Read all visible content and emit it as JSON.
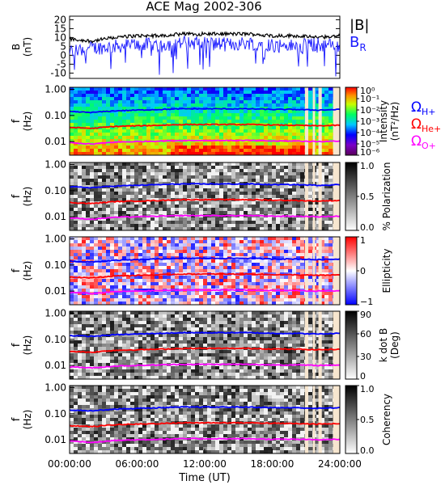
{
  "title": "ACE Mag 2002-306",
  "colors": {
    "B_total": "#000000",
    "B_R": "#1a1aff",
    "H_plus": "#0000ff",
    "He_plus": "#ff0000",
    "O_plus": "#ff00ff",
    "no_data_fill": "#f7e6cf"
  },
  "x_axis": {
    "label": "Time (UT)",
    "range_hours": [
      0,
      24
    ],
    "ticks": [
      "00:00:00",
      "06:00:00",
      "12:00:00",
      "18:00:00",
      "24:00:00"
    ],
    "tick_hours": [
      0,
      6,
      12,
      18,
      24
    ]
  },
  "legend": {
    "B_total": "|B|",
    "B_R_main": "B",
    "B_R_sub": "R",
    "omega": "Ω",
    "H_plus_sub": "H+",
    "He_plus_sub": "He+",
    "O_plus_sub": "O+"
  },
  "freq_ticks": [
    "1.00",
    "0.10",
    "0.01"
  ],
  "freq_tick_values": [
    1.0,
    0.1,
    0.01
  ],
  "chart_data": [
    {
      "id": "b_timeseries",
      "type": "line",
      "ylabel": "B",
      "yunit": "(nT)",
      "ylim": [
        -13,
        22
      ],
      "yticks": [
        "20",
        "15",
        "10",
        "5",
        "0",
        "-5",
        "-10"
      ],
      "ytick_values": [
        20,
        15,
        10,
        5,
        0,
        -5,
        -10
      ],
      "series": [
        {
          "name": "|B|",
          "x_hours": [
            0,
            2,
            4,
            6,
            8,
            10,
            12,
            14,
            16,
            18,
            20,
            22,
            24
          ],
          "values": [
            9,
            8,
            10,
            11,
            11,
            12,
            12,
            12,
            12,
            11,
            11,
            10,
            11
          ]
        },
        {
          "name": "B_R",
          "x_hours": [
            0,
            2,
            4,
            6,
            8,
            10,
            12,
            14,
            16,
            18,
            20,
            22,
            24
          ],
          "values": [
            2,
            4,
            5,
            6,
            6,
            7,
            7,
            6,
            7,
            6,
            5,
            6,
            5
          ]
        }
      ]
    },
    {
      "id": "intensity",
      "type": "heatmap",
      "ylabel": "f",
      "yunit": "(Hz)",
      "colorbar_label": "Intensity",
      "colorbar_unit": "(nT²/Hz)",
      "colorbar_ticks": [
        "10⁰",
        "10⁻¹",
        "10⁻²",
        "10⁻³",
        "10⁻⁴",
        "10⁻⁵",
        "10⁻⁶"
      ],
      "colorbar_scale": "log",
      "colorbar_range": [
        1e-06,
        1
      ]
    },
    {
      "id": "polarization",
      "type": "heatmap",
      "ylabel": "f",
      "yunit": "(Hz)",
      "colorbar_label": "% Polarization",
      "colorbar_ticks": [
        "1.0",
        "0.5",
        "0.0"
      ],
      "colorbar_range": [
        0,
        1
      ]
    },
    {
      "id": "ellipticity",
      "type": "heatmap",
      "ylabel": "f",
      "yunit": "(Hz)",
      "colorbar_label": "Ellipticity",
      "colorbar_ticks": [
        "1",
        "0",
        "−1"
      ],
      "colorbar_range": [
        -1,
        1
      ]
    },
    {
      "id": "k_dot_b",
      "type": "heatmap",
      "ylabel": "f",
      "yunit": "(Hz)",
      "colorbar_label": "k dot B",
      "colorbar_unit": "(Deg)",
      "colorbar_ticks": [
        "90",
        "60",
        "30",
        "0"
      ],
      "colorbar_range": [
        0,
        90
      ]
    },
    {
      "id": "coherency",
      "type": "heatmap",
      "ylabel": "f",
      "yunit": "(Hz)",
      "colorbar_label": "Coherency",
      "colorbar_ticks": [
        "1.0",
        "0.5",
        "0.0"
      ],
      "colorbar_range": [
        0,
        1
      ]
    }
  ],
  "gyrofrequency_lines": {
    "x_hours": [
      0,
      2,
      4,
      6,
      8,
      10,
      12,
      14,
      16,
      18,
      20,
      22,
      24
    ],
    "H_plus_hz": [
      0.14,
      0.13,
      0.15,
      0.16,
      0.17,
      0.18,
      0.18,
      0.18,
      0.18,
      0.17,
      0.17,
      0.16,
      0.17
    ],
    "He_plus_hz": [
      0.035,
      0.032,
      0.038,
      0.04,
      0.042,
      0.045,
      0.045,
      0.045,
      0.045,
      0.043,
      0.042,
      0.04,
      0.042
    ],
    "O_plus_hz": [
      0.009,
      0.008,
      0.0095,
      0.01,
      0.0105,
      0.011,
      0.011,
      0.011,
      0.011,
      0.0105,
      0.0105,
      0.01,
      0.0105
    ]
  }
}
